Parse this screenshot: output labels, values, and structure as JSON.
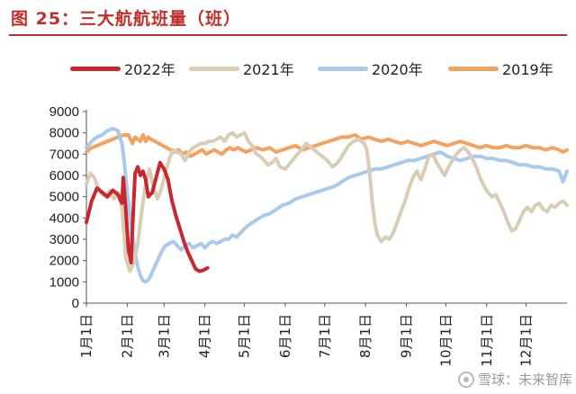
{
  "header": {
    "title": "图 25：三大航航班量（班）"
  },
  "watermark": {
    "text": "雪球：未来智库"
  },
  "chart_data": {
    "type": "line",
    "title": "图 25：三大航航班量（班）",
    "xlabel": "",
    "ylabel": "",
    "ylim": [
      0,
      9000
    ],
    "yticks": [
      0,
      1000,
      2000,
      3000,
      4000,
      5000,
      6000,
      7000,
      8000,
      9000
    ],
    "xlim_day_of_year": [
      1,
      366
    ],
    "xticks": [
      "1月1日",
      "2月1日",
      "3月1日",
      "4月1日",
      "5月1日",
      "6月1日",
      "7月1日",
      "8月1日",
      "9月1日",
      "10月1日",
      "11月1日",
      "12月1日"
    ],
    "xtick_days": [
      1,
      32,
      60,
      91,
      121,
      152,
      182,
      213,
      244,
      274,
      305,
      335
    ],
    "grid": false,
    "legend_position": "top",
    "series": [
      {
        "name": "2022年",
        "color": "#c8282d",
        "x": [
          1,
          5,
          9,
          13,
          17,
          21,
          25,
          28,
          29,
          31,
          33,
          35,
          36,
          38,
          40,
          42,
          44,
          46,
          48,
          51,
          54,
          57,
          60,
          63,
          66,
          69,
          72,
          75,
          78,
          81,
          84,
          87,
          90,
          93
        ],
        "y": [
          3800,
          4800,
          5400,
          5200,
          5000,
          5300,
          5100,
          4700,
          5900,
          4300,
          2500,
          1900,
          3500,
          6100,
          6400,
          6000,
          6200,
          5800,
          5000,
          5200,
          5900,
          6600,
          6300,
          5800,
          4800,
          4100,
          3500,
          2900,
          2400,
          2000,
          1600,
          1500,
          1550,
          1650
        ]
      },
      {
        "name": "2021年",
        "color": "#d9cdb6",
        "x": [
          1,
          4,
          7,
          10,
          13,
          16,
          19,
          22,
          25,
          28,
          31,
          34,
          37,
          40,
          43,
          46,
          49,
          52,
          55,
          58,
          61,
          64,
          67,
          70,
          73,
          76,
          79,
          82,
          85,
          88,
          91,
          94,
          97,
          100,
          103,
          106,
          109,
          112,
          115,
          118,
          121,
          124,
          127,
          130,
          133,
          136,
          139,
          142,
          145,
          148,
          152,
          156,
          160,
          164,
          168,
          172,
          176,
          180,
          184,
          188,
          192,
          196,
          200,
          204,
          208,
          212,
          214,
          216,
          218,
          220,
          222,
          225,
          228,
          231,
          234,
          237,
          240,
          243,
          246,
          249,
          252,
          255,
          258,
          261,
          264,
          267,
          270,
          273,
          276,
          279,
          282,
          285,
          288,
          291,
          294,
          297,
          300,
          303,
          306,
          309,
          312,
          315,
          318,
          321,
          324,
          327,
          330,
          333,
          336,
          339,
          342,
          345,
          348,
          351,
          354,
          357,
          360,
          363,
          366
        ],
        "y": [
          5600,
          6100,
          5900,
          5400,
          5100,
          5000,
          5300,
          4900,
          5200,
          4500,
          2100,
          1500,
          1900,
          2800,
          4300,
          5600,
          6300,
          5400,
          4900,
          5400,
          6100,
          6800,
          7200,
          7100,
          7000,
          6700,
          7100,
          7300,
          7400,
          7500,
          7500,
          7600,
          7600,
          7700,
          7800,
          7600,
          7900,
          8000,
          7800,
          7900,
          8000,
          7600,
          7400,
          7000,
          6900,
          6700,
          6500,
          6600,
          6800,
          6400,
          6300,
          6600,
          6900,
          7200,
          7500,
          7300,
          7100,
          6900,
          6700,
          6400,
          6600,
          7000,
          7400,
          7600,
          7700,
          7500,
          7200,
          6200,
          4800,
          3800,
          3200,
          2900,
          3100,
          3000,
          3300,
          3800,
          4300,
          4800,
          5400,
          5900,
          6200,
          5800,
          6300,
          6900,
          7000,
          6600,
          6300,
          6000,
          6400,
          6700,
          7000,
          7200,
          7300,
          7100,
          6800,
          6400,
          5900,
          5500,
          5200,
          5000,
          5100,
          4700,
          4300,
          3800,
          3400,
          3500,
          3900,
          4300,
          4500,
          4300,
          4600,
          4700,
          4400,
          4300,
          4600,
          4500,
          4700,
          4800,
          4600
        ],
        "y_note": ""
      },
      {
        "name": "2020年",
        "color": "#a9c9ed",
        "x": [
          1,
          5,
          9,
          13,
          17,
          21,
          25,
          28,
          30,
          32,
          34,
          36,
          38,
          40,
          42,
          44,
          46,
          48,
          50,
          52,
          55,
          58,
          61,
          64,
          67,
          70,
          73,
          76,
          79,
          82,
          85,
          88,
          91,
          94,
          97,
          100,
          103,
          106,
          109,
          112,
          115,
          118,
          121,
          125,
          130,
          135,
          140,
          145,
          150,
          155,
          160,
          165,
          170,
          175,
          180,
          185,
          190,
          195,
          200,
          205,
          210,
          215,
          220,
          225,
          230,
          235,
          240,
          245,
          250,
          255,
          260,
          265,
          270,
          275,
          280,
          285,
          290,
          295,
          300,
          305,
          310,
          315,
          320,
          325,
          330,
          335,
          340,
          345,
          350,
          355,
          360,
          363,
          366
        ],
        "y": [
          7300,
          7600,
          7800,
          7900,
          8100,
          8200,
          8100,
          7500,
          6500,
          5200,
          4200,
          3200,
          2400,
          1700,
          1300,
          1050,
          1000,
          1100,
          1300,
          1600,
          2000,
          2400,
          2700,
          2800,
          2900,
          2700,
          2500,
          2700,
          2800,
          2600,
          2700,
          2800,
          2600,
          2800,
          2900,
          2800,
          2900,
          3000,
          3000,
          3200,
          3100,
          3300,
          3500,
          3700,
          3900,
          4100,
          4200,
          4400,
          4600,
          4700,
          4900,
          5000,
          5100,
          5200,
          5300,
          5400,
          5500,
          5700,
          5900,
          6000,
          6100,
          6200,
          6300,
          6300,
          6400,
          6500,
          6600,
          6700,
          6700,
          6800,
          6900,
          7000,
          7100,
          6900,
          6800,
          6700,
          6800,
          6900,
          6900,
          6800,
          6800,
          6700,
          6700,
          6600,
          6500,
          6500,
          6400,
          6400,
          6300,
          6300,
          6200,
          5700,
          6200
        ]
      },
      {
        "name": "2019年",
        "color": "#f4a261",
        "x": [
          1,
          5,
          9,
          13,
          17,
          21,
          25,
          29,
          33,
          36,
          38,
          40,
          42,
          44,
          46,
          48,
          50,
          53,
          56,
          59,
          62,
          65,
          68,
          71,
          74,
          77,
          80,
          83,
          86,
          89,
          92,
          95,
          98,
          101,
          104,
          107,
          110,
          113,
          116,
          119,
          122,
          126,
          130,
          135,
          140,
          145,
          150,
          155,
          160,
          165,
          170,
          175,
          180,
          185,
          190,
          195,
          200,
          205,
          210,
          215,
          220,
          225,
          230,
          235,
          240,
          245,
          250,
          255,
          260,
          265,
          270,
          275,
          280,
          285,
          290,
          295,
          300,
          305,
          310,
          315,
          320,
          325,
          330,
          335,
          340,
          345,
          350,
          355,
          360,
          363,
          366
        ],
        "y": [
          7100,
          7300,
          7400,
          7500,
          7600,
          7700,
          7800,
          7900,
          7900,
          7500,
          7800,
          7700,
          7600,
          7900,
          7600,
          7800,
          7700,
          7600,
          7500,
          7400,
          7300,
          7200,
          7100,
          7200,
          7000,
          7100,
          6900,
          7000,
          7100,
          7200,
          7000,
          7100,
          7200,
          7100,
          7000,
          7200,
          7300,
          7200,
          7300,
          7200,
          7100,
          7200,
          7300,
          7200,
          7300,
          7100,
          7200,
          7300,
          7400,
          7200,
          7300,
          7400,
          7500,
          7600,
          7700,
          7800,
          7800,
          7900,
          7700,
          7800,
          7700,
          7600,
          7700,
          7600,
          7500,
          7600,
          7500,
          7400,
          7500,
          7600,
          7500,
          7400,
          7500,
          7600,
          7500,
          7400,
          7300,
          7400,
          7300,
          7300,
          7400,
          7300,
          7300,
          7400,
          7300,
          7300,
          7200,
          7300,
          7200,
          7100,
          7200
        ]
      }
    ]
  }
}
